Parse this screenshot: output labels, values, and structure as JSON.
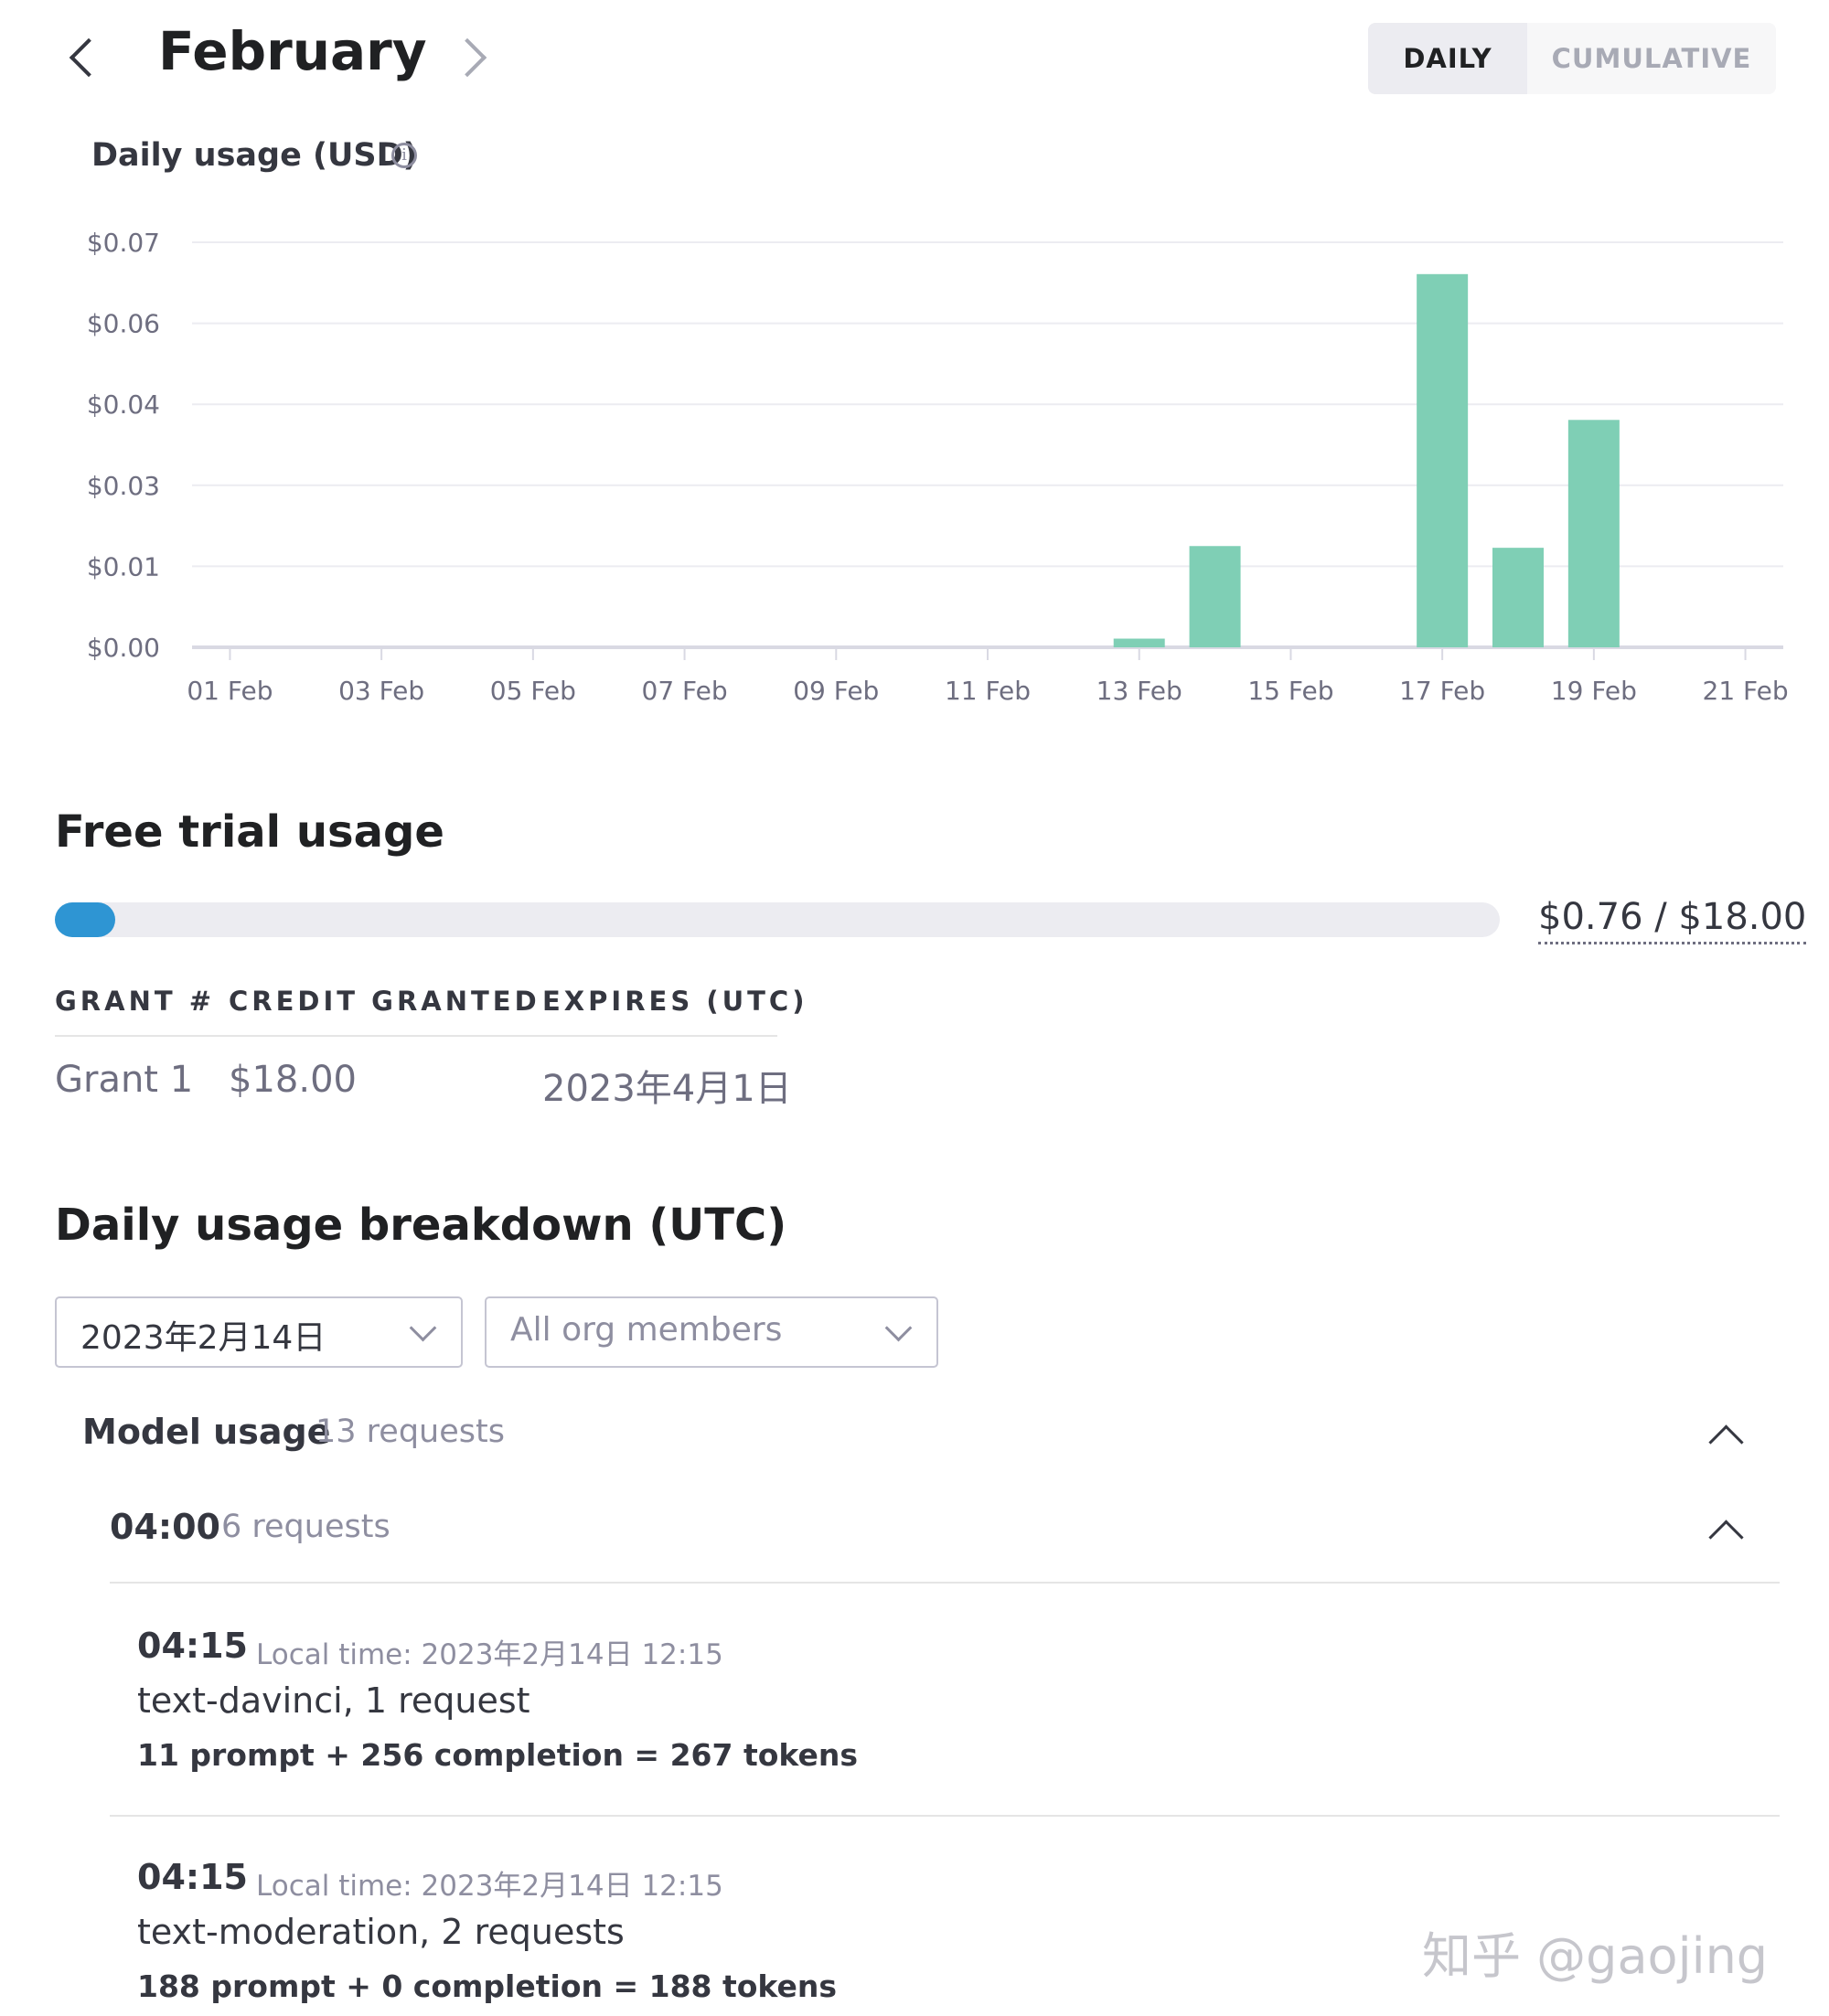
{
  "header": {
    "month": "February",
    "toggle": {
      "daily_label": "DAILY",
      "cumulative_label": "CUMULATIVE",
      "selected": "DAILY"
    }
  },
  "chart_section": {
    "title": "Daily usage (USD)",
    "info_icon": "info-circle-icon"
  },
  "chart_data": {
    "type": "bar",
    "title": "Daily usage (USD)",
    "xlabel": "",
    "ylabel": "",
    "ylim": [
      0,
      0.07
    ],
    "y_ticks": [
      {
        "label": "$0.00",
        "value": 0.0
      },
      {
        "label": "$0.01",
        "value": 0.014
      },
      {
        "label": "$0.03",
        "value": 0.028
      },
      {
        "label": "$0.04",
        "value": 0.042
      },
      {
        "label": "$0.06",
        "value": 0.056
      },
      {
        "label": "$0.07",
        "value": 0.07
      }
    ],
    "x_ticks": [
      "01 Feb",
      "03 Feb",
      "05 Feb",
      "07 Feb",
      "09 Feb",
      "11 Feb",
      "13 Feb",
      "15 Feb",
      "17 Feb",
      "19 Feb",
      "21 Feb"
    ],
    "categories": [
      "01 Feb",
      "02 Feb",
      "03 Feb",
      "04 Feb",
      "05 Feb",
      "06 Feb",
      "07 Feb",
      "08 Feb",
      "09 Feb",
      "10 Feb",
      "11 Feb",
      "12 Feb",
      "13 Feb",
      "14 Feb",
      "15 Feb",
      "16 Feb",
      "17 Feb",
      "18 Feb",
      "19 Feb",
      "20 Feb",
      "21 Feb"
    ],
    "values": [
      0,
      0,
      0,
      0,
      0,
      0,
      0,
      0,
      0,
      0,
      0,
      0,
      0.0015,
      0.0175,
      0,
      0,
      0.0645,
      0.0172,
      0.0393,
      0,
      0
    ],
    "color": "#7fcfb5",
    "grid": true
  },
  "free_trial": {
    "title": "Free trial usage",
    "used": 0.76,
    "total": 18.0,
    "used_fraction": 0.042,
    "amount_label": "$0.76 / $18.00",
    "bar_color": "#2e95d3",
    "columns": [
      "GRANT #",
      "CREDIT GRANTED",
      "EXPIRES (UTC)"
    ],
    "rows": [
      [
        "Grant 1",
        "$18.00",
        "2023年4月1日"
      ]
    ]
  },
  "breakdown": {
    "title": "Daily usage breakdown (UTC)",
    "date_select": "2023年2月14日",
    "member_select": "All org members",
    "model_usage": {
      "label": "Model usage",
      "count": "13 requests"
    },
    "hour_group": {
      "label": "04:00",
      "count": "6 requests"
    },
    "entries": [
      {
        "time": "04:15",
        "local": "Local time: 2023年2月14日 12:15",
        "model": "text-davinci, 1 request",
        "tokens": "11 prompt + 256 completion = 267 tokens"
      },
      {
        "time": "04:15",
        "local": "Local time: 2023年2月14日 12:15",
        "model": "text-moderation, 2 requests",
        "tokens": "188 prompt + 0 completion = 188 tokens"
      }
    ]
  },
  "watermark": "知乎 @gaojing"
}
